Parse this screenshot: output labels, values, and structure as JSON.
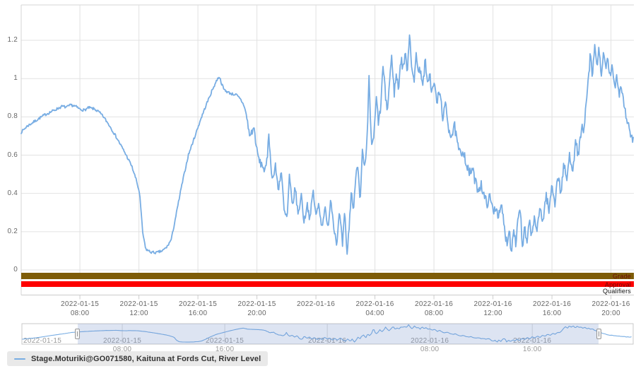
{
  "legend": {
    "label": "Stage.Moturiki@GO071580, Kaituna at Fords Cut, River Level",
    "marker_color": "#78ade3"
  },
  "status_bars": {
    "grade": {
      "label": "Grade",
      "color": "#7e5c08",
      "label_color": "#6d0b07"
    },
    "approval": {
      "label": "Approval",
      "color": "#fe0000",
      "label_color": "#6d0b07"
    },
    "qualifiers": {
      "label": "Qualifiers",
      "label_color": "#111111"
    }
  },
  "navigator": {
    "selection": {
      "from_t": 4.5,
      "to_t": 45.2
    },
    "mask_color": "rgba(102,133,194,0.22)",
    "border_color": "#c8c8c8",
    "gridline_color": "#dcdcdc"
  },
  "colors": {
    "gridline": "#e2e2e2",
    "plot_border": "#d4d4d4",
    "axis_line": "#cccccc",
    "axis_text": "#666666",
    "nav_text": "#999999"
  },
  "chart_data": {
    "type": "line",
    "title": "",
    "xlabel": "",
    "ylabel": "",
    "x_unit": "hours since 2022-01-15 00:00",
    "y_range_main": [
      0,
      1.385
    ],
    "visible_t_range": [
      4.02,
      45.55
    ],
    "navigator_t_range": [
      0.2,
      47.8
    ],
    "grid": true,
    "legend_position": "bottom-left",
    "y_ticks": [
      {
        "v": 0.0,
        "label": "0"
      },
      {
        "v": 0.2,
        "label": "0.2"
      },
      {
        "v": 0.4,
        "label": "0.4"
      },
      {
        "v": 0.6,
        "label": "0.6"
      },
      {
        "v": 0.8,
        "label": "0.8"
      },
      {
        "v": 1.0,
        "label": "1"
      },
      {
        "v": 1.2,
        "label": "1.2"
      }
    ],
    "x_ticks_main": [
      {
        "t": 8,
        "date": "2022-01-15",
        "time": "08:00"
      },
      {
        "t": 12,
        "date": "2022-01-15",
        "time": "12:00"
      },
      {
        "t": 16,
        "date": "2022-01-15",
        "time": "16:00"
      },
      {
        "t": 20,
        "date": "2022-01-15",
        "time": "20:00"
      },
      {
        "t": 24,
        "date": "2022-01-16",
        "time": ""
      },
      {
        "t": 28,
        "date": "2022-01-16",
        "time": "04:00"
      },
      {
        "t": 32,
        "date": "2022-01-16",
        "time": "08:00"
      },
      {
        "t": 36,
        "date": "2022-01-16",
        "time": "12:00"
      },
      {
        "t": 40,
        "date": "2022-01-16",
        "time": "16:00"
      },
      {
        "t": 44,
        "date": "2022-01-16",
        "time": "20:00"
      }
    ],
    "x_ticks_navigator": [
      {
        "t": 0,
        "date": "2022-01-15",
        "time": "",
        "align": "left"
      },
      {
        "t": 8,
        "date": "2022-01-15",
        "time": "08:00"
      },
      {
        "t": 16,
        "date": "2022-01-15",
        "time": "16:00"
      },
      {
        "t": 24,
        "date": "2022-01-16",
        "time": ""
      },
      {
        "t": 32,
        "date": "2022-01-16",
        "time": "08:00"
      },
      {
        "t": 40,
        "date": "2022-01-16",
        "time": "16:00"
      }
    ],
    "series": [
      {
        "name": "Stage.Moturiki@GO071580, Kaituna at Fords Cut, River Level",
        "color": "#78ade3",
        "noise_segments": [
          {
            "from": 0,
            "to": 19.2,
            "amp": 0.007
          },
          {
            "from": 19.2,
            "to": 27.45,
            "amp": 0.02
          },
          {
            "from": 27.45,
            "to": 48,
            "amp": 0.027
          }
        ],
        "keypoints": [
          [
            0.2,
            0.28
          ],
          [
            0.8,
            0.33
          ],
          [
            1.5,
            0.4
          ],
          [
            2.2,
            0.49
          ],
          [
            3.0,
            0.59
          ],
          [
            3.6,
            0.66
          ],
          [
            4.02,
            0.72
          ],
          [
            4.4,
            0.75
          ],
          [
            4.8,
            0.77
          ],
          [
            5.2,
            0.79
          ],
          [
            5.6,
            0.81
          ],
          [
            6.0,
            0.825
          ],
          [
            6.4,
            0.84
          ],
          [
            6.8,
            0.855
          ],
          [
            7.1,
            0.85
          ],
          [
            7.4,
            0.862
          ],
          [
            7.7,
            0.855
          ],
          [
            8.0,
            0.84
          ],
          [
            8.3,
            0.835
          ],
          [
            8.6,
            0.848
          ],
          [
            9.0,
            0.84
          ],
          [
            9.3,
            0.825
          ],
          [
            9.6,
            0.8
          ],
          [
            10.0,
            0.755
          ],
          [
            10.5,
            0.69
          ],
          [
            11.0,
            0.62
          ],
          [
            11.5,
            0.545
          ],
          [
            11.8,
            0.475
          ],
          [
            12.05,
            0.4
          ],
          [
            12.25,
            0.2
          ],
          [
            12.45,
            0.11
          ],
          [
            12.8,
            0.093
          ],
          [
            13.2,
            0.09
          ],
          [
            13.6,
            0.1
          ],
          [
            13.9,
            0.12
          ],
          [
            14.2,
            0.16
          ],
          [
            14.5,
            0.28
          ],
          [
            14.9,
            0.44
          ],
          [
            15.35,
            0.6
          ],
          [
            15.8,
            0.7
          ],
          [
            16.2,
            0.79
          ],
          [
            16.6,
            0.87
          ],
          [
            17.0,
            0.945
          ],
          [
            17.3,
            0.995
          ],
          [
            17.45,
            1.012
          ],
          [
            17.6,
            0.975
          ],
          [
            17.75,
            0.945
          ],
          [
            18.0,
            0.93
          ],
          [
            18.3,
            0.92
          ],
          [
            18.6,
            0.915
          ],
          [
            18.9,
            0.89
          ],
          [
            19.15,
            0.855
          ],
          [
            19.35,
            0.78
          ],
          [
            19.5,
            0.7
          ],
          [
            19.65,
            0.72
          ],
          [
            19.8,
            0.745
          ],
          [
            20.0,
            0.62
          ],
          [
            20.2,
            0.56
          ],
          [
            20.4,
            0.545
          ],
          [
            20.55,
            0.51
          ],
          [
            20.7,
            0.58
          ],
          [
            20.8,
            0.73
          ],
          [
            20.95,
            0.53
          ],
          [
            21.1,
            0.475
          ],
          [
            21.25,
            0.545
          ],
          [
            21.45,
            0.42
          ],
          [
            21.65,
            0.52
          ],
          [
            21.85,
            0.3
          ],
          [
            22.05,
            0.27
          ],
          [
            22.2,
            0.49
          ],
          [
            22.4,
            0.33
          ],
          [
            22.6,
            0.43
          ],
          [
            22.8,
            0.28
          ],
          [
            23.0,
            0.4
          ],
          [
            23.2,
            0.245
          ],
          [
            23.4,
            0.35
          ],
          [
            23.6,
            0.26
          ],
          [
            23.8,
            0.42
          ],
          [
            24.0,
            0.28
          ],
          [
            24.2,
            0.35
          ],
          [
            24.4,
            0.22
          ],
          [
            24.6,
            0.33
          ],
          [
            24.8,
            0.21
          ],
          [
            25.0,
            0.375
          ],
          [
            25.2,
            0.24
          ],
          [
            25.4,
            0.135
          ],
          [
            25.6,
            0.3
          ],
          [
            25.8,
            0.13
          ],
          [
            25.95,
            0.3
          ],
          [
            26.1,
            0.075
          ],
          [
            26.25,
            0.22
          ],
          [
            26.4,
            0.42
          ],
          [
            26.55,
            0.3
          ],
          [
            26.7,
            0.5
          ],
          [
            26.85,
            0.56
          ],
          [
            27.0,
            0.35
          ],
          [
            27.15,
            0.62
          ],
          [
            27.3,
            0.52
          ],
          [
            27.45,
            0.64
          ],
          [
            27.6,
            1.0
          ],
          [
            27.7,
            0.78
          ],
          [
            27.8,
            0.625
          ],
          [
            27.95,
            0.72
          ],
          [
            28.1,
            0.9
          ],
          [
            28.25,
            0.76
          ],
          [
            28.4,
            0.86
          ],
          [
            28.55,
            1.07
          ],
          [
            28.7,
            0.92
          ],
          [
            28.85,
            0.83
          ],
          [
            29.0,
            1.0
          ],
          [
            29.15,
            1.12
          ],
          [
            29.3,
            0.92
          ],
          [
            29.45,
            1.02
          ],
          [
            29.6,
            0.95
          ],
          [
            29.75,
            1.1
          ],
          [
            29.9,
            1.06
          ],
          [
            30.05,
            1.12
          ],
          [
            30.2,
            1.05
          ],
          [
            30.35,
            1.245
          ],
          [
            30.5,
            1.06
          ],
          [
            30.65,
            0.96
          ],
          [
            30.8,
            1.15
          ],
          [
            30.95,
            1.02
          ],
          [
            31.1,
            1.06
          ],
          [
            31.25,
            0.95
          ],
          [
            31.4,
            1.1
          ],
          [
            31.55,
            0.96
          ],
          [
            31.7,
            1.04
          ],
          [
            31.85,
            0.92
          ],
          [
            32.0,
            0.98
          ],
          [
            32.2,
            0.88
          ],
          [
            32.4,
            0.93
          ],
          [
            32.6,
            0.8
          ],
          [
            32.8,
            0.86
          ],
          [
            33.0,
            0.74
          ],
          [
            33.2,
            0.7
          ],
          [
            33.4,
            0.75
          ],
          [
            33.6,
            0.65
          ],
          [
            33.8,
            0.6
          ],
          [
            34.0,
            0.63
          ],
          [
            34.2,
            0.55
          ],
          [
            34.4,
            0.5
          ],
          [
            34.6,
            0.53
          ],
          [
            34.8,
            0.46
          ],
          [
            35.0,
            0.42
          ],
          [
            35.2,
            0.45
          ],
          [
            35.4,
            0.38
          ],
          [
            35.6,
            0.35
          ],
          [
            35.8,
            0.38
          ],
          [
            36.0,
            0.31
          ],
          [
            36.2,
            0.33
          ],
          [
            36.4,
            0.28
          ],
          [
            36.6,
            0.33
          ],
          [
            36.8,
            0.2
          ],
          [
            36.95,
            0.14
          ],
          [
            37.1,
            0.22
          ],
          [
            37.25,
            0.08
          ],
          [
            37.4,
            0.24
          ],
          [
            37.55,
            0.13
          ],
          [
            37.7,
            0.28
          ],
          [
            37.85,
            0.33
          ],
          [
            38.0,
            0.1
          ],
          [
            38.15,
            0.22
          ],
          [
            38.3,
            0.13
          ],
          [
            38.5,
            0.26
          ],
          [
            38.65,
            0.16
          ],
          [
            38.8,
            0.28
          ],
          [
            39.0,
            0.2
          ],
          [
            39.2,
            0.33
          ],
          [
            39.4,
            0.25
          ],
          [
            39.6,
            0.4
          ],
          [
            39.8,
            0.3
          ],
          [
            40.0,
            0.45
          ],
          [
            40.2,
            0.35
          ],
          [
            40.4,
            0.5
          ],
          [
            40.6,
            0.4
          ],
          [
            40.8,
            0.55
          ],
          [
            41.0,
            0.47
          ],
          [
            41.2,
            0.6
          ],
          [
            41.4,
            0.53
          ],
          [
            41.6,
            0.66
          ],
          [
            41.8,
            0.6
          ],
          [
            42.0,
            0.75
          ],
          [
            42.15,
            0.7
          ],
          [
            42.3,
            0.85
          ],
          [
            42.45,
            0.98
          ],
          [
            42.6,
            1.12
          ],
          [
            42.75,
            1.0
          ],
          [
            42.9,
            1.18
          ],
          [
            43.05,
            1.06
          ],
          [
            43.2,
            1.16
          ],
          [
            43.35,
            1.02
          ],
          [
            43.5,
            1.12
          ],
          [
            43.65,
            1.05
          ],
          [
            43.8,
            1.1
          ],
          [
            43.95,
            1.0
          ],
          [
            44.1,
            1.06
          ],
          [
            44.25,
            0.96
          ],
          [
            44.4,
            1.02
          ],
          [
            44.55,
            0.92
          ],
          [
            44.7,
            0.97
          ],
          [
            44.85,
            0.88
          ],
          [
            45.0,
            0.82
          ],
          [
            45.15,
            0.76
          ],
          [
            45.3,
            0.72
          ],
          [
            45.45,
            0.68
          ],
          [
            45.55,
            0.66
          ],
          [
            45.8,
            0.585
          ],
          [
            46.3,
            0.52
          ],
          [
            46.9,
            0.47
          ],
          [
            47.4,
            0.435
          ],
          [
            47.8,
            0.42
          ]
        ]
      }
    ]
  }
}
